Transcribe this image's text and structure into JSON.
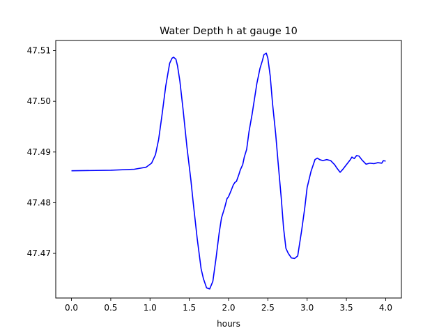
{
  "chart_data": {
    "type": "line",
    "title": "Water Depth h at gauge 10",
    "xlabel": "hours",
    "ylabel": "",
    "xlim": [
      -0.2,
      4.2
    ],
    "ylim": [
      47.4612,
      47.512
    ],
    "x_ticks": [
      0.0,
      0.5,
      1.0,
      1.5,
      2.0,
      2.5,
      3.0,
      3.5,
      4.0
    ],
    "x_tick_labels": [
      "0.0",
      "0.5",
      "1.0",
      "1.5",
      "2.0",
      "2.5",
      "3.0",
      "3.5",
      "4.0"
    ],
    "y_ticks": [
      47.47,
      47.48,
      47.49,
      47.5,
      47.51
    ],
    "y_tick_labels": [
      "47.47",
      "47.48",
      "47.49",
      "47.50",
      "47.51"
    ],
    "grid": false,
    "legend": "none",
    "series": [
      {
        "color": "#0000ff",
        "x": [
          0.0,
          0.5,
          0.8,
          0.95,
          1.02,
          1.07,
          1.11,
          1.15,
          1.2,
          1.25,
          1.28,
          1.3,
          1.33,
          1.35,
          1.38,
          1.42,
          1.47,
          1.52,
          1.55,
          1.6,
          1.65,
          1.68,
          1.72,
          1.76,
          1.8,
          1.84,
          1.88,
          1.91,
          1.95,
          1.98,
          2.0,
          2.03,
          2.06,
          2.08,
          2.1,
          2.13,
          2.15,
          2.18,
          2.2,
          2.23,
          2.26,
          2.3,
          2.33,
          2.36,
          2.4,
          2.43,
          2.45,
          2.48,
          2.5,
          2.53,
          2.56,
          2.6,
          2.63,
          2.67,
          2.7,
          2.73,
          2.76,
          2.8,
          2.84,
          2.88,
          2.9,
          2.93,
          2.97,
          3.0,
          3.05,
          3.1,
          3.13,
          3.16,
          3.2,
          3.25,
          3.3,
          3.35,
          3.38,
          3.42,
          3.45,
          3.5,
          3.55,
          3.57,
          3.6,
          3.63,
          3.66,
          3.7,
          3.75,
          3.8,
          3.85,
          3.9,
          3.95,
          3.97,
          4.0
        ],
        "values": [
          47.4863,
          47.4864,
          47.4866,
          47.487,
          47.4878,
          47.4895,
          47.4925,
          47.497,
          47.503,
          47.5075,
          47.5085,
          47.5087,
          47.5083,
          47.507,
          47.504,
          47.4985,
          47.491,
          47.4845,
          47.48,
          47.473,
          47.467,
          47.465,
          47.4632,
          47.463,
          47.4645,
          47.469,
          47.474,
          47.477,
          47.479,
          47.4808,
          47.4812,
          47.4823,
          47.4835,
          47.484,
          47.4842,
          47.4855,
          47.4865,
          47.4875,
          47.489,
          47.4905,
          47.494,
          47.4975,
          47.5005,
          47.5035,
          47.5065,
          47.508,
          47.5092,
          47.5095,
          47.5085,
          47.505,
          47.4995,
          47.4935,
          47.488,
          47.481,
          47.475,
          47.471,
          47.47,
          47.4691,
          47.469,
          47.4695,
          47.4715,
          47.4745,
          47.479,
          47.483,
          47.4862,
          47.4885,
          47.4888,
          47.4885,
          47.4883,
          47.4885,
          47.4883,
          47.4875,
          47.4868,
          47.486,
          47.4865,
          47.4875,
          47.4885,
          47.489,
          47.4887,
          47.4893,
          47.4892,
          47.4884,
          47.4876,
          47.4878,
          47.4877,
          47.4879,
          47.4878,
          47.4883,
          47.4882
        ]
      }
    ]
  }
}
